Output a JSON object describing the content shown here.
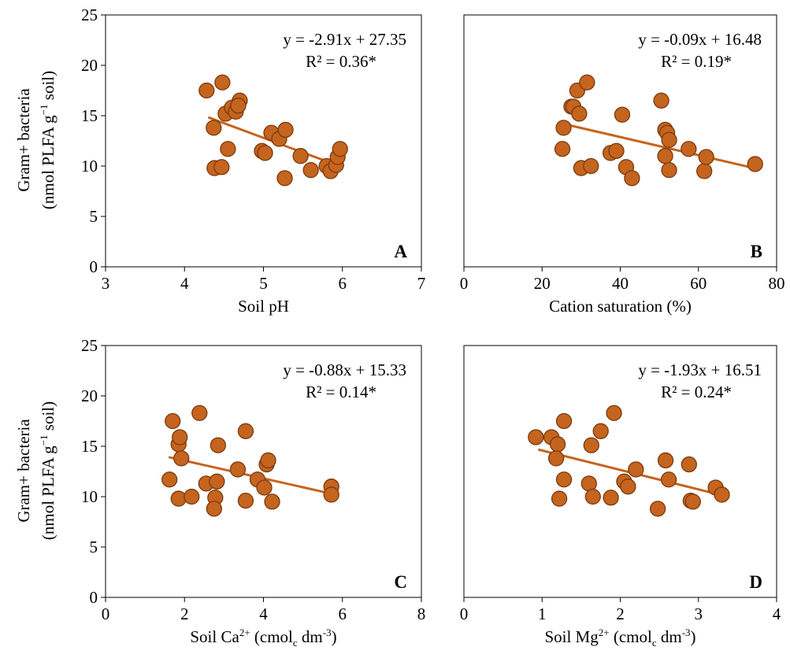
{
  "figure": {
    "y_axis_label_line1": "Gram+ bacteria",
    "y_axis_label_line2": "(nmol PLFA g",
    "y_axis_label_sup": "−1",
    "y_axis_label_tail": " soil)"
  },
  "colors": {
    "marker_fill": "#C5641E",
    "marker_edge": "#7A3A0E",
    "trendline": "#C5641E",
    "axis": "#000000"
  },
  "chart_data": [
    {
      "type": "scatter",
      "panel_letter": "A",
      "xlabel_parts": [
        [
          "Soil pH",
          ""
        ]
      ],
      "equation": "y = -2.91x + 27.35",
      "r2": "R² = 0.36*",
      "xlim": [
        3,
        7
      ],
      "ylim": [
        0,
        25
      ],
      "xticks": [
        3,
        4,
        5,
        6,
        7
      ],
      "yticks": [
        0,
        5,
        10,
        15,
        20,
        25
      ],
      "trend": {
        "slope": -2.91,
        "intercept": 27.35,
        "x_range": [
          4.3,
          5.95
        ]
      },
      "points": [
        [
          4.28,
          17.5
        ],
        [
          4.48,
          18.3
        ],
        [
          4.52,
          15.2
        ],
        [
          4.6,
          15.8
        ],
        [
          4.65,
          15.4
        ],
        [
          4.7,
          16.5
        ],
        [
          4.68,
          16.0
        ],
        [
          4.37,
          13.8
        ],
        [
          4.38,
          9.8
        ],
        [
          4.47,
          9.9
        ],
        [
          4.55,
          11.7
        ],
        [
          4.98,
          11.5
        ],
        [
          5.02,
          11.3
        ],
        [
          5.1,
          13.3
        ],
        [
          5.2,
          12.7
        ],
        [
          5.28,
          13.6
        ],
        [
          5.27,
          8.8
        ],
        [
          5.47,
          11.0
        ],
        [
          5.6,
          9.6
        ],
        [
          5.8,
          10.0
        ],
        [
          5.85,
          9.5
        ],
        [
          5.92,
          10.1
        ],
        [
          5.94,
          10.9
        ],
        [
          5.97,
          11.7
        ]
      ]
    },
    {
      "type": "scatter",
      "panel_letter": "B",
      "xlabel_parts": [
        [
          "Cation saturation (%)",
          ""
        ]
      ],
      "equation": "y = -0.09x + 16.48",
      "r2": "R² = 0.19*",
      "xlim": [
        0,
        80
      ],
      "ylim": [
        0,
        25
      ],
      "xticks": [
        0,
        20,
        40,
        60,
        80
      ],
      "yticks": [
        0,
        5,
        10,
        15,
        20,
        25
      ],
      "trend": {
        "slope": -0.09,
        "intercept": 16.48,
        "x_range": [
          25,
          74
        ]
      },
      "points": [
        [
          25.5,
          13.8
        ],
        [
          25.2,
          11.7
        ],
        [
          27.5,
          15.9
        ],
        [
          28.0,
          15.9
        ],
        [
          29.0,
          17.5
        ],
        [
          29.5,
          15.2
        ],
        [
          30.0,
          9.8
        ],
        [
          31.5,
          18.3
        ],
        [
          32.5,
          10.0
        ],
        [
          37.5,
          11.3
        ],
        [
          39.0,
          11.5
        ],
        [
          40.5,
          15.1
        ],
        [
          41.5,
          9.9
        ],
        [
          43.0,
          8.8
        ],
        [
          50.5,
          16.5
        ],
        [
          51.5,
          13.6
        ],
        [
          51.5,
          11.0
        ],
        [
          52.0,
          13.3
        ],
        [
          52.5,
          12.6
        ],
        [
          52.5,
          9.6
        ],
        [
          57.5,
          11.7
        ],
        [
          61.5,
          9.5
        ],
        [
          62.0,
          10.9
        ],
        [
          74.5,
          10.2
        ]
      ]
    },
    {
      "type": "scatter",
      "panel_letter": "C",
      "xlabel_parts": [
        [
          "Soil Ca",
          ""
        ],
        [
          "2+",
          "sup"
        ],
        [
          " (cmol",
          ""
        ],
        [
          "c",
          "sub"
        ],
        [
          " dm",
          ""
        ],
        [
          "-3",
          "sup"
        ],
        [
          ")",
          ""
        ]
      ],
      "equation": "y = -0.88x + 15.33",
      "r2": "R² = 0.14*",
      "xlim": [
        0,
        8
      ],
      "ylim": [
        0,
        25
      ],
      "xticks": [
        0,
        2,
        4,
        6,
        8
      ],
      "yticks": [
        0,
        5,
        10,
        15,
        20,
        25
      ],
      "trend": {
        "slope": -0.88,
        "intercept": 15.33,
        "x_range": [
          1.6,
          5.75
        ]
      },
      "points": [
        [
          1.7,
          17.5
        ],
        [
          1.85,
          15.2
        ],
        [
          1.88,
          15.9
        ],
        [
          1.92,
          13.8
        ],
        [
          1.62,
          11.7
        ],
        [
          1.85,
          9.8
        ],
        [
          2.18,
          10.0
        ],
        [
          2.38,
          18.3
        ],
        [
          2.85,
          15.1
        ],
        [
          2.55,
          11.3
        ],
        [
          2.82,
          11.5
        ],
        [
          2.78,
          9.9
        ],
        [
          2.75,
          8.8
        ],
        [
          3.35,
          12.7
        ],
        [
          3.55,
          16.5
        ],
        [
          3.55,
          9.6
        ],
        [
          3.85,
          11.7
        ],
        [
          4.02,
          10.9
        ],
        [
          4.08,
          13.2
        ],
        [
          4.12,
          13.6
        ],
        [
          4.22,
          9.5
        ],
        [
          5.72,
          11.0
        ],
        [
          5.72,
          10.2
        ]
      ]
    },
    {
      "type": "scatter",
      "panel_letter": "D",
      "xlabel_parts": [
        [
          "Soil Mg",
          ""
        ],
        [
          "2+",
          "sup"
        ],
        [
          " (cmol",
          ""
        ],
        [
          "c",
          "sub"
        ],
        [
          " dm",
          ""
        ],
        [
          "-3",
          "sup"
        ],
        [
          ")",
          ""
        ]
      ],
      "equation": "y = -1.93x + 16.51",
      "r2": "R² = 0.24*",
      "xlim": [
        0,
        4
      ],
      "ylim": [
        0,
        25
      ],
      "xticks": [
        0,
        1,
        2,
        3,
        4
      ],
      "yticks": [
        0,
        5,
        10,
        15,
        20,
        25
      ],
      "trend": {
        "slope": -1.93,
        "intercept": 16.51,
        "x_range": [
          0.95,
          3.3
        ]
      },
      "points": [
        [
          0.92,
          15.9
        ],
        [
          1.12,
          15.9
        ],
        [
          1.2,
          15.2
        ],
        [
          1.18,
          13.8
        ],
        [
          1.22,
          9.8
        ],
        [
          1.28,
          17.5
        ],
        [
          1.28,
          11.7
        ],
        [
          1.6,
          11.3
        ],
        [
          1.63,
          15.1
        ],
        [
          1.65,
          10.0
        ],
        [
          1.75,
          16.5
        ],
        [
          1.88,
          9.9
        ],
        [
          1.92,
          18.3
        ],
        [
          2.05,
          11.5
        ],
        [
          2.1,
          11.0
        ],
        [
          2.2,
          12.7
        ],
        [
          2.48,
          8.8
        ],
        [
          2.58,
          13.6
        ],
        [
          2.62,
          11.7
        ],
        [
          2.88,
          13.2
        ],
        [
          2.9,
          9.6
        ],
        [
          2.93,
          9.5
        ],
        [
          3.22,
          10.9
        ],
        [
          3.3,
          10.2
        ]
      ]
    }
  ]
}
